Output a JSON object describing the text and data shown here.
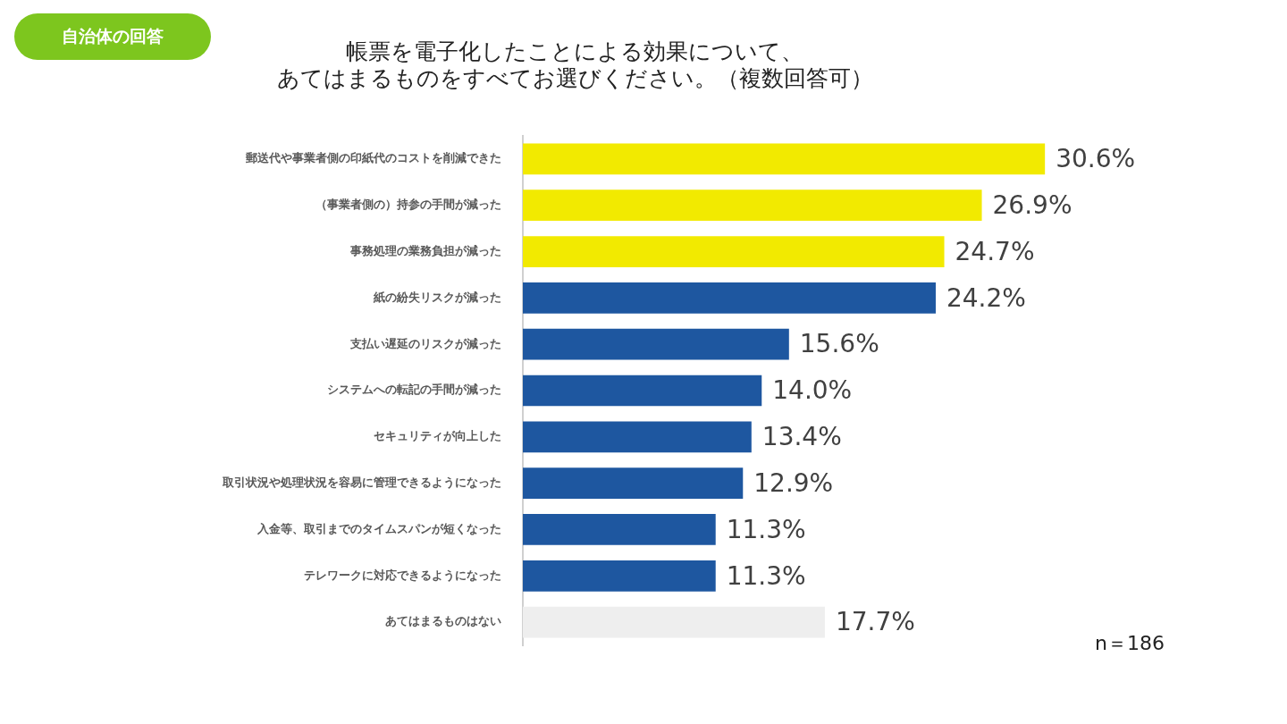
{
  "chart_data": {
    "type": "bar",
    "orientation": "horizontal",
    "title": "帳票を電子化したことによる効果について、あてはまるものをすべてお選びください。（複数回答可）",
    "categories": [
      "郵送代や事業者側の印紙代のコストを削減できた",
      "（事業者側の）持参の手間が減った",
      "事務処理の業務負担が減った",
      "紙の紛失リスクが減った",
      "支払い遅延のリスクが減った",
      "システムへの転記の手間が減った",
      "セキュリティが向上した",
      "取引状況や処理状況を容易に管理できるようになった",
      "入金等、取引までのタイムスパンが短くなった",
      "テレワークに対応できるようになった",
      "あてはまるものはない"
    ],
    "values": [
      30.6,
      26.9,
      24.7,
      24.2,
      15.6,
      14.0,
      13.4,
      12.9,
      11.3,
      11.3,
      17.7
    ],
    "colors": [
      "#f2ea00",
      "#f2ea00",
      "#f2ea00",
      "#1e57a0",
      "#1e57a0",
      "#1e57a0",
      "#1e57a0",
      "#1e57a0",
      "#1e57a0",
      "#1e57a0",
      "#eeeeee"
    ],
    "value_labels": [
      "30.6%",
      "26.9%",
      "24.7%",
      "24.2%",
      "15.6%",
      "14.0%",
      "13.4%",
      "12.9%",
      "11.3%",
      "11.3%",
      "17.7%"
    ],
    "annotations": [
      "自治体の回答",
      "n＝186"
    ],
    "legend": false
  }
}
